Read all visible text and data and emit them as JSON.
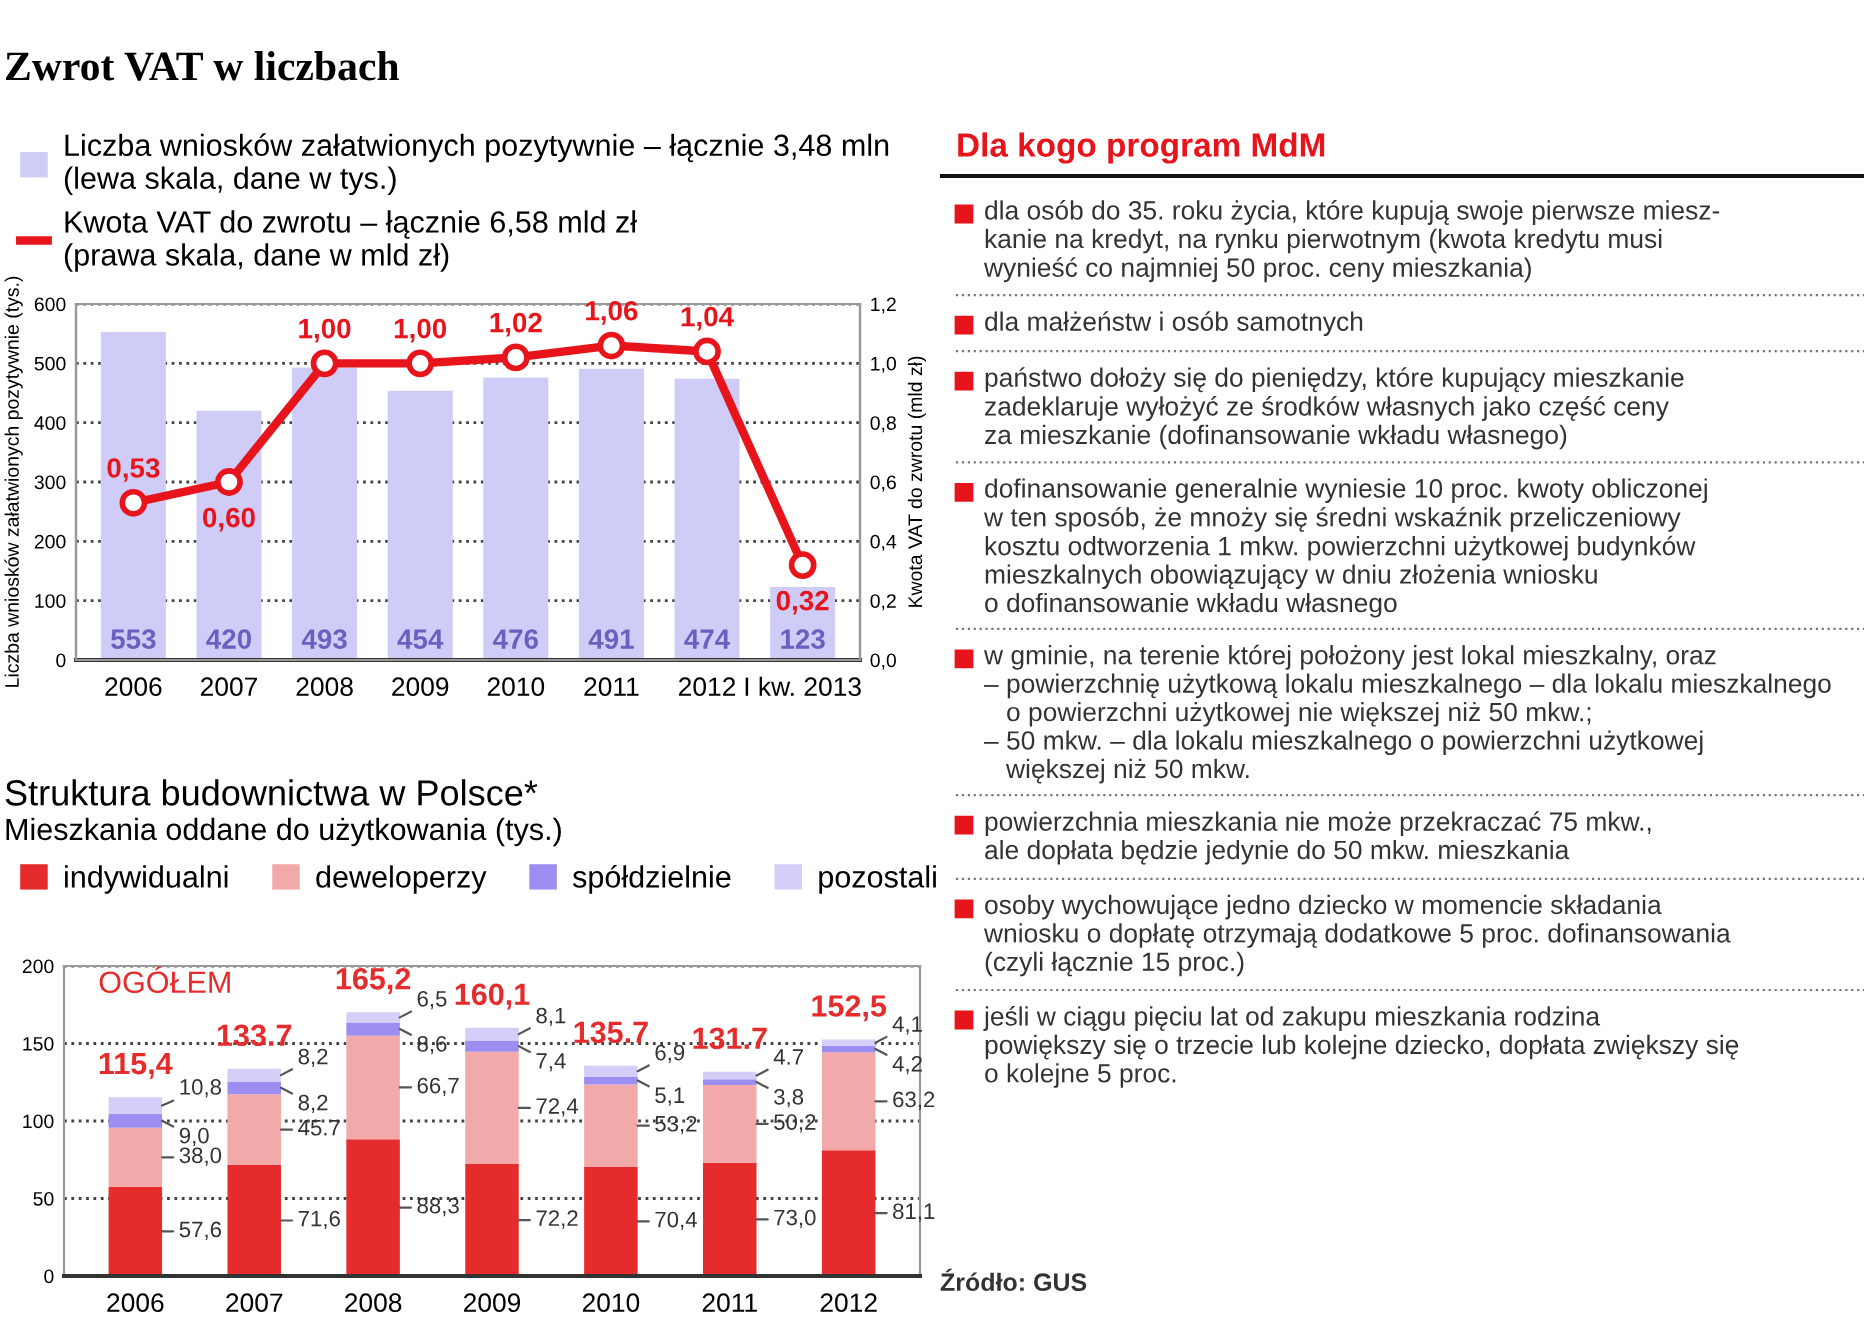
{
  "chart_data": [
    {
      "type": "bar",
      "title": "Zwrot VAT w liczbach",
      "categories": [
        "2006",
        "2007",
        "2008",
        "2009",
        "2010",
        "2011",
        "2012",
        "I kw. 2013"
      ],
      "series": [
        {
          "name": "Liczba wniosków załatwionych pozytywnie – łącznie 3,48 mln\n(lewa skala, dane w tys.)",
          "color": "#cfcdf7",
          "values": [
            553,
            420,
            493,
            454,
            476,
            491,
            474,
            123
          ],
          "value_labels": [
            "553",
            "420",
            "493",
            "454",
            "476",
            "491",
            "474",
            "123"
          ]
        },
        {
          "name": "Kwota VAT do zwrotu – łącznie 6,58 mld zł\n(prawa skala, dane w mld zł)",
          "type": "line",
          "axis": "y2",
          "marker": "circle",
          "color": "#e8141c",
          "values": [
            0.53,
            0.6,
            1.0,
            1.0,
            1.02,
            1.06,
            1.04,
            0.32
          ],
          "value_labels": [
            "0,53",
            "0,60",
            "1,00",
            "1,00",
            "1,02",
            "1,06",
            "1,04",
            "0,32"
          ]
        }
      ],
      "ylabel": "Liczba wniosków załatwionych pozytywnie (tys.)",
      "y2label": "Kwota VAT do zwrotu (mld zł)",
      "ylim": [
        0,
        600
      ],
      "yticks": [
        0,
        100,
        200,
        300,
        400,
        500,
        600
      ],
      "y2lim": [
        0,
        1.2
      ],
      "y2ticks": [
        {
          "value": 0,
          "label": "0,0"
        },
        {
          "value": 0.2,
          "label": "0,2"
        },
        {
          "value": 0.4,
          "label": "0,4"
        },
        {
          "value": 0.6,
          "label": "0,6"
        },
        {
          "value": 0.8,
          "label": "0,8"
        },
        {
          "value": 1.0,
          "label": "1,0"
        },
        {
          "value": 1.2,
          "label": "1,2"
        }
      ],
      "grid": "y",
      "legend": "top"
    },
    {
      "type": "bar",
      "stacked": true,
      "title": "Struktura budownictwa w Polsce*",
      "subtitle": "Mieszkania oddane do użytkowania (tys.)",
      "categories": [
        "2006",
        "2007",
        "2008",
        "2009",
        "2010",
        "2011",
        "2012"
      ],
      "series": [
        {
          "name": "indywidualni",
          "color": "#e52b2b",
          "values": [
            57.6,
            71.6,
            88.3,
            72.2,
            70.4,
            73.0,
            81.1
          ],
          "value_labels": [
            "57,6",
            "71,6",
            "88,3",
            "72,2",
            "70,4",
            "73,0",
            "81,1"
          ]
        },
        {
          "name": "deweloperzy",
          "color": "#f2a9a9",
          "values": [
            38.0,
            45.7,
            66.7,
            72.4,
            53.2,
            50.2,
            63.2
          ],
          "value_labels": [
            "38,0",
            "45.7",
            "66,7",
            "72,4",
            "53,2",
            "50,2",
            "63,2"
          ]
        },
        {
          "name": "spółdzielnie",
          "color": "#9b8ef0",
          "values": [
            9.0,
            8.2,
            8.6,
            7.4,
            5.1,
            3.8,
            4.2
          ],
          "value_labels": [
            "9,0",
            "8,2",
            "8,6",
            "7,4",
            "5,1",
            "3,8",
            "4,2"
          ]
        },
        {
          "name": "pozostali",
          "color": "#d3cff8",
          "values": [
            10.8,
            8.2,
            6.5,
            8.1,
            6.9,
            4.7,
            4.1
          ],
          "value_labels": [
            "10,8",
            "8,2",
            "6,5",
            "8,1",
            "6,9",
            "4.7",
            "4,1"
          ]
        }
      ],
      "annotations": [
        "OGÓŁEM",
        "115,4",
        "133.7",
        "165,2",
        "160,1",
        "135.7",
        "131.7",
        "152,5"
      ],
      "ylim": [
        0,
        200
      ],
      "yticks": [
        0,
        50,
        100,
        150,
        200
      ],
      "grid": "y",
      "legend": "top"
    },
    {
      "type": "other",
      "title": "Dla kogo program MdM",
      "annotations": [
        "dla osób do 35. roku życia, które kupują swoje pierwsze miesz-\nkanie na kredyt, na rynku pierwotnym (kwota kredytu musi\nwynieść co najmniej 50 proc. ceny mieszkania)",
        "dla małżeństw i osób samotnych",
        "państwo dołoży się do pieniędzy, które kupujący mieszkanie\nzadeklaruje wyłożyć ze środków własnych jako część ceny\nza mieszkanie (dofinansowanie wkładu własnego)",
        "dofinansowanie generalnie wyniesie 10 proc. kwoty obliczonej\nw ten sposób, że mnoży się średni wskaźnik przeliczeniowy\nkosztu odtworzenia 1 mkw. powierzchni użytkowej budynków\nmieszkalnych obowiązujący w dniu złożenia wniosku\no dofinansowanie wkładu własnego",
        "w gminie, na terenie której położony jest lokal mieszkalny, oraz\n– powierzchnię użytkową lokalu mieszkalnego – dla lokalu mieszkalnego\n   o powierzchni użytkowej nie większej niż 50 mkw.;\n– 50 mkw. – dla lokalu mieszkalnego o powierzchni użytkowej\n   większej niż 50 mkw.",
        "powierzchnia mieszkania nie może przekraczać 75 mkw.,\nale dopłata będzie jedynie do 50 mkw. mieszkania",
        "osoby wychowujące jedno dziecko w momencie składania\nwniosku o dopłatę otrzymają dodatkowe 5 proc. dofinansowania\n(czyli łącznie 15 proc.)",
        "jeśli w ciągu pięciu lat od zakupu mieszkania rodzina\npowiększy się o trzecie lub kolejne dziecko, dopłata zwiększy się\no kolejne 5 proc.",
        "Źródło: GUS"
      ]
    }
  ]
}
